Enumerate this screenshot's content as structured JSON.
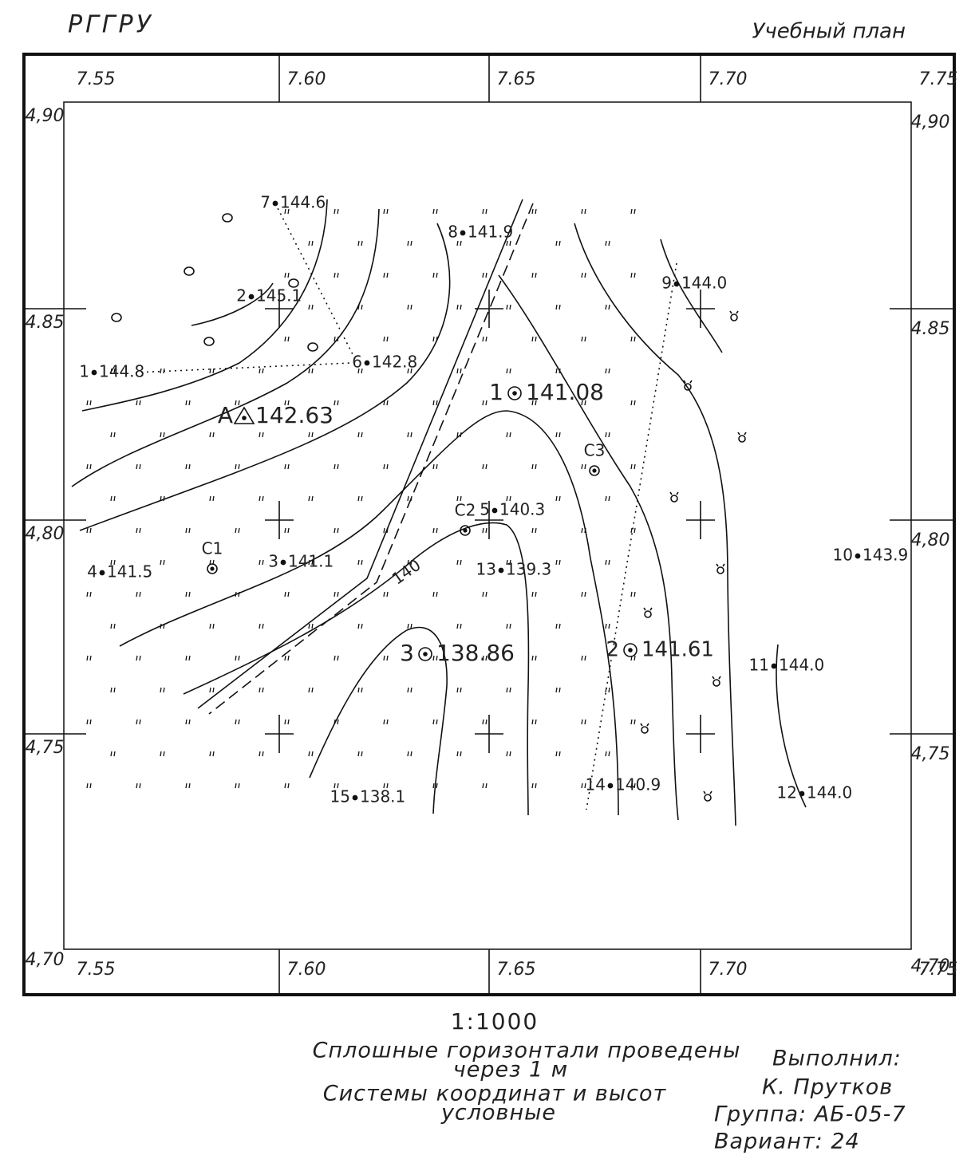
{
  "header": {
    "org": "РГГРУ",
    "doc_type": "Учебный план"
  },
  "grid": {
    "x_labels": [
      "7.55",
      "7.60",
      "7.65",
      "7.70",
      "7.75"
    ],
    "y_labels": [
      "4,90",
      "4.85",
      "4,80",
      "4,75",
      "4,70"
    ]
  },
  "points": [
    {
      "id": "7",
      "elev": "144.6"
    },
    {
      "id": "8",
      "elev": "141.9"
    },
    {
      "id": "2",
      "elev": "145.1"
    },
    {
      "id": "9",
      "elev": "144.0"
    },
    {
      "id": "1",
      "elev": "144.8"
    },
    {
      "id": "6",
      "elev": "142.8"
    },
    {
      "id": "A",
      "elev": "142.63"
    },
    {
      "id": "1",
      "elev": "141.08"
    },
    {
      "id": "5",
      "elev": "140.3"
    },
    {
      "id": "10",
      "elev": "143.9"
    },
    {
      "id": "4",
      "elev": "141.5"
    },
    {
      "id": "3",
      "elev": "141.1"
    },
    {
      "id": "13",
      "elev": "139.3"
    },
    {
      "id": "3",
      "elev": "138.86"
    },
    {
      "id": "2",
      "elev": "141.61"
    },
    {
      "id": "11",
      "elev": "144.0"
    },
    {
      "id": "15",
      "elev": "138.1"
    },
    {
      "id": "14",
      "elev": "140.9"
    },
    {
      "id": "12",
      "elev": "144.0"
    }
  ],
  "stations": [
    {
      "label": "C1"
    },
    {
      "label": "C2"
    },
    {
      "label": "C3"
    }
  ],
  "contour_label": "140",
  "footer": {
    "scale": "1:1000",
    "note_lines": [
      "Сплошные горизонтали проведены",
      "через 1 м",
      "Системы координат и высот",
      "условные"
    ],
    "author_lines": [
      "Выполнил:",
      "К. Прутков",
      "Группа: АБ-05-7",
      "Вариант: 24"
    ]
  }
}
